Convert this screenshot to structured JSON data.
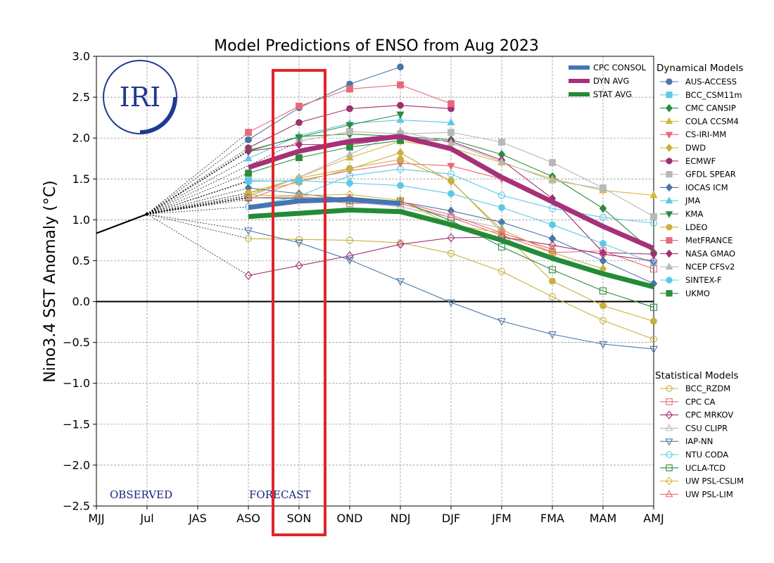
{
  "chart_data": {
    "type": "line",
    "title": "Model Predictions of ENSO from Aug 2023",
    "ylabel": "Nino3.4 SST Anomaly ($^\\circ$C)",
    "ylabel_main": "Nino3.4 SST Anomaly (",
    "ylabel_unit": "°C)",
    "xlabel": "",
    "categories": [
      "MJJ",
      "Jul",
      "JAS",
      "ASO",
      "SON",
      "OND",
      "NDJ",
      "DJF",
      "JFM",
      "FMA",
      "MAM",
      "AMJ"
    ],
    "ylim": [
      -2.5,
      3.0
    ],
    "yticks": [
      -2.5,
      -2.0,
      -1.5,
      -1.0,
      -0.5,
      0.0,
      0.5,
      1.0,
      1.5,
      2.0,
      2.5,
      3.0
    ],
    "ytick_labels": [
      "−2.5",
      "−2.0",
      "−1.5",
      "−1.0",
      "−0.5",
      "0.0",
      "0.5",
      "1.0",
      "1.5",
      "2.0",
      "2.5",
      "3.0"
    ],
    "grid": true,
    "annotations": {
      "observed": "OBSERVED",
      "forecast": "FORECAST",
      "logo": "IRI"
    },
    "highlight_box": {
      "category": "SON",
      "color": "#e0252b"
    },
    "observed": {
      "categories": [
        "MJJ",
        "Jul"
      ],
      "x_start": -0.15,
      "values": [
        0.8,
        1.07
      ],
      "color": "#000000"
    },
    "avg_series": [
      {
        "name": "CPC CONSOL",
        "color": "#4575b4",
        "values": [
          null,
          null,
          null,
          1.15,
          1.23,
          1.25,
          1.2,
          null,
          null,
          null,
          null,
          null
        ]
      },
      {
        "name": "DYN AVG",
        "color": "#a6317a",
        "values": [
          null,
          null,
          null,
          1.64,
          1.84,
          1.96,
          2.02,
          1.87,
          1.52,
          1.22,
          0.92,
          0.65
        ]
      },
      {
        "name": "STAT AVG",
        "color": "#238b37",
        "values": [
          null,
          null,
          null,
          1.04,
          1.08,
          1.12,
          1.1,
          0.94,
          0.75,
          0.53,
          0.34,
          0.18
        ]
      }
    ],
    "dynamical_title": "Dynamical Models",
    "dynamical_series": [
      {
        "name": "AUS-ACCESS",
        "color": "#4a76a8",
        "marker": "circle",
        "filled": true,
        "values": [
          null,
          null,
          null,
          1.98,
          2.37,
          2.66,
          2.87,
          null,
          null,
          null,
          null,
          null
        ]
      },
      {
        "name": "BCC_CSM11m",
        "color": "#5bc8e8",
        "marker": "square",
        "filled": true,
        "values": [
          null,
          null,
          null,
          1.48,
          1.47,
          null,
          null,
          null,
          null,
          null,
          null,
          null
        ]
      },
      {
        "name": "CMC CANSIP",
        "color": "#2e8b3e",
        "marker": "diamond",
        "filled": true,
        "values": [
          null,
          null,
          null,
          1.84,
          2.02,
          2.05,
          2.02,
          1.98,
          1.8,
          1.53,
          1.14,
          0.6
        ]
      },
      {
        "name": "COLA CCSM4",
        "color": "#d4b83a",
        "marker": "triangle-up",
        "filled": true,
        "values": [
          null,
          null,
          null,
          1.3,
          1.52,
          1.76,
          1.96,
          1.88,
          1.7,
          1.5,
          1.36,
          1.3
        ]
      },
      {
        "name": "CS-IRI-MM",
        "color": "#e8697a",
        "marker": "triangle-down",
        "filled": true,
        "values": [
          null,
          null,
          null,
          1.25,
          1.48,
          1.6,
          1.69,
          1.66,
          1.5,
          null,
          null,
          null
        ]
      },
      {
        "name": "DWD",
        "color": "#c8b040",
        "marker": "diamond",
        "filled": true,
        "values": [
          null,
          null,
          null,
          1.33,
          1.46,
          1.62,
          1.82,
          1.47,
          0.88,
          0.6,
          0.4,
          null
        ]
      },
      {
        "name": "ECMWF",
        "color": "#a0306f",
        "marker": "circle",
        "filled": true,
        "values": [
          null,
          null,
          null,
          1.88,
          2.19,
          2.36,
          2.4,
          2.36,
          null,
          null,
          null,
          null
        ]
      },
      {
        "name": "GFDL SPEAR",
        "color": "#b8b8b8",
        "marker": "square",
        "filled": true,
        "values": [
          null,
          null,
          null,
          null,
          1.96,
          2.08,
          2.05,
          2.07,
          1.95,
          1.7,
          1.39,
          1.04
        ]
      },
      {
        "name": "IOCAS ICM",
        "color": "#4a76a8",
        "marker": "diamond",
        "filled": true,
        "values": [
          null,
          null,
          null,
          1.39,
          1.32,
          1.25,
          1.22,
          1.11,
          0.97,
          0.77,
          0.5,
          0.22
        ]
      },
      {
        "name": "JMA",
        "color": "#5bc8e8",
        "marker": "triangle-up",
        "filled": true,
        "values": [
          null,
          null,
          null,
          1.75,
          2.03,
          2.18,
          2.22,
          2.19,
          null,
          null,
          null,
          null
        ]
      },
      {
        "name": "KMA",
        "color": "#2e8b3e",
        "marker": "triangle-down",
        "filled": true,
        "values": [
          null,
          null,
          null,
          1.85,
          2.01,
          2.16,
          2.29,
          null,
          null,
          null,
          null,
          null
        ]
      },
      {
        "name": "LDEO",
        "color": "#c8b040",
        "marker": "circle",
        "filled": true,
        "values": [
          null,
          null,
          null,
          1.33,
          1.51,
          1.63,
          1.74,
          1.48,
          0.85,
          0.25,
          -0.05,
          -0.24
        ]
      },
      {
        "name": "MetFRANCE",
        "color": "#e8697a",
        "marker": "square",
        "filled": true,
        "values": [
          null,
          null,
          null,
          2.07,
          2.39,
          2.6,
          2.65,
          2.42,
          null,
          null,
          null,
          null
        ]
      },
      {
        "name": "NASA GMAO",
        "color": "#a0306f",
        "marker": "diamond",
        "filled": true,
        "values": [
          null,
          null,
          null,
          1.84,
          1.92,
          1.92,
          2.0,
          1.96,
          1.73,
          1.26,
          0.6,
          0.58
        ]
      },
      {
        "name": "NCEP CFSv2",
        "color": "#b8b8b8",
        "marker": "triangle-up",
        "filled": true,
        "values": [
          null,
          null,
          null,
          1.28,
          1.52,
          1.8,
          2.08,
          1.94,
          1.71,
          1.48,
          1.38,
          null
        ]
      },
      {
        "name": "SINTEX-F",
        "color": "#5bc8e8",
        "marker": "circle",
        "filled": true,
        "values": [
          null,
          null,
          null,
          1.47,
          1.48,
          1.45,
          1.42,
          1.32,
          1.15,
          0.94,
          0.71,
          0.47
        ]
      },
      {
        "name": "UKMO",
        "color": "#2e8b3e",
        "marker": "square",
        "filled": true,
        "values": [
          null,
          null,
          null,
          1.57,
          1.76,
          1.89,
          1.97,
          null,
          null,
          null,
          null,
          null
        ]
      }
    ],
    "statistical_title": "Statistical Models",
    "statistical_series": [
      {
        "name": "BCC_RZDM",
        "color": "#c8b040",
        "marker": "circle",
        "filled": false,
        "values": [
          null,
          null,
          null,
          0.77,
          0.76,
          0.75,
          0.72,
          0.59,
          0.37,
          0.06,
          -0.23,
          -0.46
        ]
      },
      {
        "name": "CPC CA",
        "color": "#e8697a",
        "marker": "square",
        "filled": false,
        "values": [
          null,
          null,
          null,
          1.27,
          1.27,
          1.2,
          1.2,
          1.03,
          0.81,
          0.6,
          0.62,
          0.4
        ]
      },
      {
        "name": "CPC MRKOV",
        "color": "#a0306f",
        "marker": "diamond",
        "filled": false,
        "values": [
          null,
          null,
          null,
          0.32,
          0.44,
          0.56,
          0.7,
          0.78,
          0.79,
          0.69,
          0.58,
          0.5
        ]
      },
      {
        "name": "CSU CLIPR",
        "color": "#b8b8b8",
        "marker": "triangle-up",
        "filled": false,
        "values": [
          null,
          null,
          null,
          1.27,
          1.29,
          1.22,
          1.16,
          1.03,
          0.9,
          null,
          null,
          null
        ]
      },
      {
        "name": "IAP-NN",
        "color": "#4a76a8",
        "marker": "triangle-down",
        "filled": false,
        "values": [
          null,
          null,
          null,
          0.87,
          0.72,
          0.51,
          0.25,
          -0.01,
          -0.24,
          -0.4,
          -0.52,
          -0.58
        ]
      },
      {
        "name": "NTU CODA",
        "color": "#5bc8e8",
        "marker": "circle",
        "filled": false,
        "values": [
          null,
          null,
          null,
          1.16,
          1.29,
          1.54,
          1.62,
          1.56,
          1.3,
          1.14,
          1.03,
          0.96
        ]
      },
      {
        "name": "UCLA-TCD",
        "color": "#2e8b3e",
        "marker": "square",
        "filled": false,
        "values": [
          null,
          null,
          null,
          1.27,
          1.26,
          1.24,
          1.23,
          0.99,
          0.67,
          0.39,
          0.13,
          -0.07
        ]
      },
      {
        "name": "UW PSL-CSLIM",
        "color": "#d4b83a",
        "marker": "diamond",
        "filled": false,
        "values": [
          null,
          null,
          null,
          1.3,
          1.3,
          1.31,
          1.24,
          0.94,
          0.84,
          0.64,
          null,
          null
        ]
      },
      {
        "name": "UW PSL-LIM",
        "color": "#e8697a",
        "marker": "triangle-up",
        "filled": false,
        "values": [
          null,
          null,
          null,
          1.27,
          1.27,
          1.27,
          1.22,
          1.06,
          0.84,
          0.64,
          null,
          null
        ]
      }
    ]
  }
}
